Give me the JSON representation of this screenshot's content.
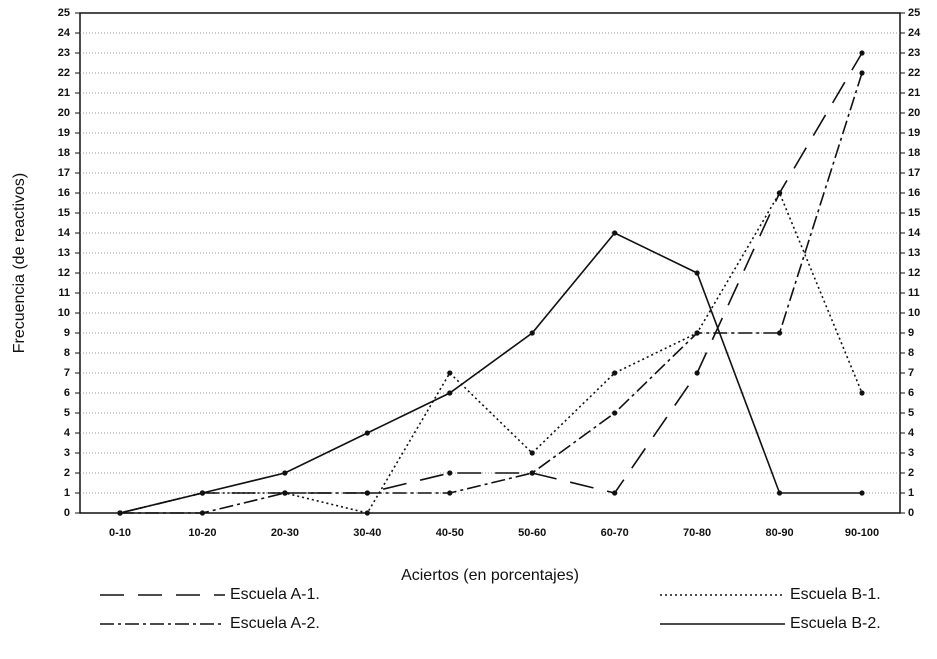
{
  "chart_data": {
    "type": "line",
    "xlabel": "Aciertos (en porcentajes)",
    "ylabel": "Frecuencia (de reactivos)",
    "categories": [
      "0-10",
      "10-20",
      "20-30",
      "30-40",
      "40-50",
      "50-60",
      "60-70",
      "70-80",
      "80-90",
      "90-100"
    ],
    "series": [
      {
        "name": "Escuela A-1.",
        "color": "#111111",
        "values": [
          0,
          1,
          1,
          1,
          2,
          2,
          1,
          7,
          16,
          23
        ]
      },
      {
        "name": "Escuela A-2.",
        "color": "#111111",
        "values": [
          0,
          0,
          1,
          1,
          1,
          2,
          5,
          9,
          9,
          22
        ]
      },
      {
        "name": "Escuela B-1.",
        "color": "#111111",
        "values": [
          0,
          1,
          1,
          0,
          7,
          3,
          7,
          9,
          16,
          6
        ]
      },
      {
        "name": "Escuela B-2.",
        "color": "#111111",
        "values": [
          0,
          1,
          2,
          4,
          6,
          9,
          14,
          12,
          1,
          1
        ]
      }
    ],
    "ylim": [
      0,
      25
    ],
    "yticks": [
      0,
      1,
      2,
      3,
      4,
      5,
      6,
      7,
      8,
      9,
      10,
      11,
      12,
      13,
      14,
      15,
      16,
      17,
      18,
      19,
      20,
      21,
      22,
      23,
      24,
      25
    ],
    "y2lim": [
      0,
      25
    ],
    "y2ticks": [
      0,
      1,
      2,
      3,
      4,
      5,
      6,
      7,
      8,
      9,
      10,
      11,
      12,
      13,
      14,
      15,
      16,
      17,
      18,
      19,
      20,
      21,
      22,
      23,
      24,
      25
    ],
    "grid": true,
    "legend": "bottom"
  }
}
